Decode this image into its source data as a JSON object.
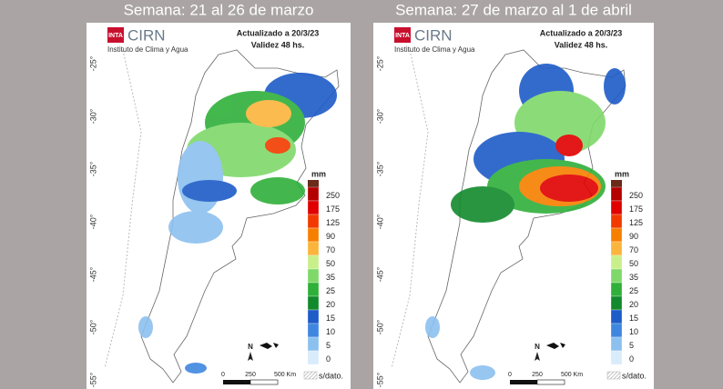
{
  "panels": [
    {
      "title": "Semana: 21 al 26 de marzo",
      "logo": {
        "badge": "INTA",
        "name": "CIRN",
        "subtitle": "Instituto de Clima y Agua"
      },
      "updated": "Actualizado a 20/3/23",
      "validity": "Validez 48 hs.",
      "lat_labels": [
        "-25°",
        "-30°",
        "-35°",
        "-40°",
        "-45°",
        "-50°",
        "-55°"
      ],
      "legend": {
        "unit": "mm",
        "values": [
          250,
          175,
          125,
          90,
          70,
          50,
          35,
          25,
          20,
          15,
          10,
          5,
          0
        ],
        "colors": [
          "#b40000",
          "#e00000",
          "#f23a00",
          "#f77f00",
          "#fbb43c",
          "#c9ef8a",
          "#7fd96a",
          "#2fb03a",
          "#128a2c",
          "#1e5cc8",
          "#3f86df",
          "#8cc0ef",
          "#d8ecfb"
        ],
        "no_data": "s/dato."
      },
      "scale": {
        "north": "N",
        "labels": [
          "0",
          "250",
          "500 Km"
        ]
      }
    },
    {
      "title": "Semana: 27 de marzo al 1 de abril",
      "logo": {
        "badge": "INTA",
        "name": "CIRN",
        "subtitle": "Instituto de Clima y Agua"
      },
      "updated": "Actualizado a 20/3/23",
      "validity": "Validez 48 hs.",
      "lat_labels": [
        "-25°",
        "-30°",
        "-35°",
        "-40°",
        "-45°",
        "-50°",
        "-55°"
      ],
      "legend": {
        "unit": "mm",
        "values": [
          250,
          175,
          125,
          90,
          70,
          50,
          35,
          25,
          20,
          15,
          10,
          5,
          0
        ],
        "colors": [
          "#b40000",
          "#e00000",
          "#f23a00",
          "#f77f00",
          "#fbb43c",
          "#c9ef8a",
          "#7fd96a",
          "#2fb03a",
          "#128a2c",
          "#1e5cc8",
          "#3f86df",
          "#8cc0ef",
          "#d8ecfb"
        ],
        "no_data": "s/dato."
      },
      "scale": {
        "north": "N",
        "labels": [
          "0",
          "250",
          "500 Km"
        ]
      }
    }
  ]
}
